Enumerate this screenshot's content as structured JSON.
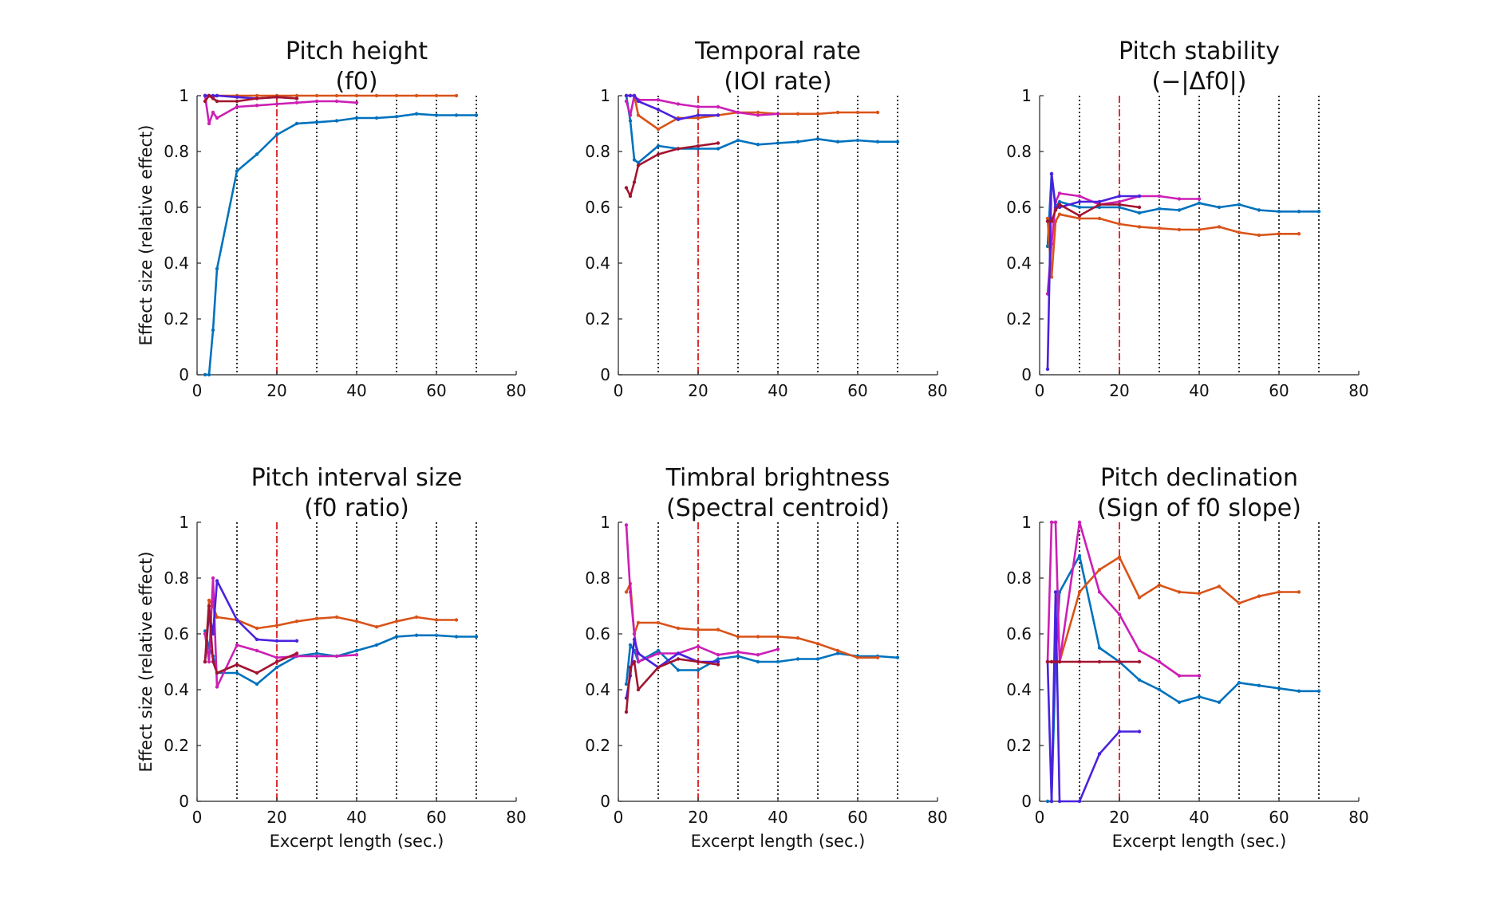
{
  "colors": {
    "blue": "#0072BD",
    "orange": "#D95319",
    "magenta": "#CC1FB5",
    "violet": "#4A22DD",
    "darkred": "#A2142F",
    "vline": "#000000",
    "redline": "#D40000"
  },
  "chart_data": [
    {
      "type": "line",
      "title": [
        "Pitch height",
        "(f0)"
      ],
      "xlabel": "",
      "ylabel": "Effect size (relative effect)",
      "xlim": [
        0,
        80
      ],
      "ylim": [
        0,
        1
      ],
      "xticks": [
        0,
        20,
        40,
        60,
        80
      ],
      "yticks": [
        0,
        0.2,
        0.4,
        0.6,
        0.8,
        1
      ],
      "vlines": [
        10,
        20,
        30,
        40,
        50,
        60,
        70
      ],
      "red_vline": 20,
      "series": [
        {
          "color": "blue",
          "x": [
            2,
            3,
            4,
            5,
            10,
            15,
            20,
            25,
            30,
            35,
            40,
            45,
            50,
            55,
            60,
            65,
            70
          ],
          "y": [
            0,
            0,
            0.16,
            0.38,
            0.73,
            0.79,
            0.86,
            0.9,
            0.905,
            0.91,
            0.92,
            0.92,
            0.925,
            0.935,
            0.93,
            0.93,
            0.93
          ]
        },
        {
          "color": "orange",
          "x": [
            2,
            3,
            4,
            5,
            10,
            15,
            20,
            25,
            30,
            35,
            40,
            45,
            50,
            55,
            60,
            65
          ],
          "y": [
            1,
            1,
            0.995,
            1,
            1,
            1,
            1,
            1,
            1,
            1,
            1,
            1,
            1,
            1,
            1,
            1
          ]
        },
        {
          "color": "magenta",
          "x": [
            2,
            3,
            4,
            5,
            10,
            15,
            20,
            25,
            30,
            35,
            40
          ],
          "y": [
            1,
            0.9,
            0.94,
            0.92,
            0.96,
            0.965,
            0.97,
            0.975,
            0.98,
            0.98,
            0.975
          ]
        },
        {
          "color": "violet",
          "x": [
            2,
            3,
            4,
            5,
            10,
            15,
            20,
            25
          ],
          "y": [
            1,
            1,
            1,
            1,
            0.995,
            0.99,
            0.995,
            0.99
          ]
        },
        {
          "color": "darkred",
          "x": [
            2,
            3,
            4,
            5,
            10,
            15,
            20,
            25
          ],
          "y": [
            0.98,
            1,
            0.99,
            0.98,
            0.98,
            0.99,
            0.995,
            0.99
          ]
        }
      ]
    },
    {
      "type": "line",
      "title": [
        "Temporal rate",
        "(IOI rate)"
      ],
      "xlabel": "",
      "ylabel": "",
      "xlim": [
        0,
        80
      ],
      "ylim": [
        0,
        1
      ],
      "xticks": [
        0,
        20,
        40,
        60,
        80
      ],
      "yticks": [
        0,
        0.2,
        0.4,
        0.6,
        0.8,
        1
      ],
      "vlines": [
        10,
        20,
        30,
        40,
        50,
        60,
        70
      ],
      "red_vline": 20,
      "series": [
        {
          "color": "blue",
          "x": [
            2,
            3,
            4,
            5,
            10,
            15,
            20,
            25,
            30,
            35,
            40,
            45,
            50,
            55,
            60,
            65,
            70
          ],
          "y": [
            1,
            0.91,
            0.77,
            0.76,
            0.82,
            0.81,
            0.81,
            0.81,
            0.84,
            0.825,
            0.83,
            0.835,
            0.845,
            0.835,
            0.84,
            0.835,
            0.835
          ]
        },
        {
          "color": "orange",
          "x": [
            2,
            3,
            4,
            5,
            10,
            15,
            20,
            25,
            30,
            35,
            40,
            45,
            50,
            55,
            60,
            65
          ],
          "y": [
            1,
            1,
            1,
            0.93,
            0.88,
            0.92,
            0.92,
            0.93,
            0.94,
            0.94,
            0.935,
            0.935,
            0.935,
            0.94,
            0.94,
            0.94
          ]
        },
        {
          "color": "magenta",
          "x": [
            2,
            3,
            4,
            5,
            10,
            15,
            20,
            25,
            30,
            35,
            40
          ],
          "y": [
            0.98,
            0.93,
            1,
            0.985,
            0.985,
            0.97,
            0.96,
            0.96,
            0.94,
            0.93,
            0.935
          ]
        },
        {
          "color": "violet",
          "x": [
            2,
            3,
            4,
            5,
            10,
            15,
            20,
            25
          ],
          "y": [
            1,
            1,
            1,
            0.98,
            0.95,
            0.915,
            0.93,
            0.93
          ]
        },
        {
          "color": "darkred",
          "x": [
            2,
            3,
            4,
            5,
            10,
            15,
            20,
            25
          ],
          "y": [
            0.67,
            0.64,
            0.69,
            0.75,
            0.79,
            0.81,
            0.82,
            0.83
          ]
        }
      ]
    },
    {
      "type": "line",
      "title": [
        "Pitch stability",
        "(−|Δf0|)"
      ],
      "xlabel": "",
      "ylabel": "",
      "xlim": [
        0,
        80
      ],
      "ylim": [
        0,
        1
      ],
      "xticks": [
        0,
        20,
        40,
        60,
        80
      ],
      "yticks": [
        0,
        0.2,
        0.4,
        0.6,
        0.8,
        1
      ],
      "vlines": [
        10,
        20,
        30,
        40,
        50,
        60,
        70
      ],
      "red_vline": 20,
      "series": [
        {
          "color": "blue",
          "x": [
            2,
            3,
            4,
            5,
            10,
            15,
            20,
            25,
            30,
            35,
            40,
            45,
            50,
            55,
            60,
            65,
            70
          ],
          "y": [
            0.46,
            0.72,
            0.6,
            0.62,
            0.6,
            0.6,
            0.6,
            0.58,
            0.595,
            0.59,
            0.615,
            0.6,
            0.61,
            0.59,
            0.585,
            0.585,
            0.585
          ]
        },
        {
          "color": "orange",
          "x": [
            2,
            3,
            4,
            5,
            10,
            15,
            20,
            25,
            30,
            35,
            40,
            45,
            50,
            55,
            60,
            65
          ],
          "y": [
            0.56,
            0.35,
            0.55,
            0.575,
            0.56,
            0.56,
            0.54,
            0.53,
            0.525,
            0.52,
            0.52,
            0.53,
            0.51,
            0.5,
            0.505,
            0.505
          ]
        },
        {
          "color": "magenta",
          "x": [
            2,
            3,
            4,
            5,
            10,
            15,
            20,
            25,
            30,
            35,
            40
          ],
          "y": [
            0.29,
            0.47,
            0.62,
            0.65,
            0.64,
            0.61,
            0.62,
            0.64,
            0.64,
            0.63,
            0.63
          ]
        },
        {
          "color": "violet",
          "x": [
            2,
            3,
            4,
            5,
            10,
            15,
            20,
            25
          ],
          "y": [
            0.02,
            0.72,
            0.6,
            0.6,
            0.62,
            0.62,
            0.64,
            0.64
          ]
        },
        {
          "color": "darkred",
          "x": [
            2,
            3,
            4,
            5,
            10,
            15,
            20,
            25
          ],
          "y": [
            0.55,
            0.55,
            0.59,
            0.61,
            0.57,
            0.61,
            0.61,
            0.6
          ]
        }
      ]
    },
    {
      "type": "line",
      "title": [
        "Pitch interval size",
        "(f0 ratio)"
      ],
      "xlabel": "Excerpt length (sec.)",
      "ylabel": "Effect size (relative effect)",
      "xlim": [
        0,
        80
      ],
      "ylim": [
        0,
        1
      ],
      "xticks": [
        0,
        20,
        40,
        60,
        80
      ],
      "yticks": [
        0,
        0.2,
        0.4,
        0.6,
        0.8,
        1
      ],
      "vlines": [
        10,
        20,
        30,
        40,
        50,
        60,
        70
      ],
      "red_vline": 20,
      "series": [
        {
          "color": "blue",
          "x": [
            2,
            3,
            4,
            5,
            10,
            15,
            20,
            25,
            30,
            35,
            40,
            45,
            50,
            55,
            60,
            65,
            70
          ],
          "y": [
            0.61,
            0.55,
            0.52,
            0.46,
            0.46,
            0.42,
            0.48,
            0.52,
            0.53,
            0.52,
            0.54,
            0.56,
            0.59,
            0.595,
            0.595,
            0.59,
            0.59
          ]
        },
        {
          "color": "orange",
          "x": [
            2,
            3,
            4,
            5,
            10,
            15,
            20,
            25,
            30,
            35,
            40,
            45,
            50,
            55,
            60,
            65
          ],
          "y": [
            0.5,
            0.72,
            0.7,
            0.66,
            0.65,
            0.62,
            0.63,
            0.645,
            0.655,
            0.66,
            0.645,
            0.625,
            0.645,
            0.66,
            0.65,
            0.65
          ]
        },
        {
          "color": "magenta",
          "x": [
            2,
            3,
            4,
            5,
            10,
            15,
            20,
            25,
            30,
            35,
            40
          ],
          "y": [
            0.6,
            0.5,
            0.8,
            0.41,
            0.56,
            0.54,
            0.515,
            0.52,
            0.52,
            0.52,
            0.525
          ]
        },
        {
          "color": "violet",
          "x": [
            2,
            3,
            4,
            5,
            10,
            15,
            20,
            25
          ],
          "y": [
            0.5,
            0.68,
            0.6,
            0.79,
            0.65,
            0.58,
            0.575,
            0.575
          ]
        },
        {
          "color": "darkred",
          "x": [
            2,
            3,
            4,
            5,
            10,
            15,
            20,
            25
          ],
          "y": [
            0.5,
            0.7,
            0.5,
            0.46,
            0.49,
            0.46,
            0.5,
            0.53
          ]
        }
      ]
    },
    {
      "type": "line",
      "title": [
        "Timbral brightness",
        "(Spectral centroid)"
      ],
      "xlabel": "Excerpt length (sec.)",
      "ylabel": "",
      "xlim": [
        0,
        80
      ],
      "ylim": [
        0,
        1
      ],
      "xticks": [
        0,
        20,
        40,
        60,
        80
      ],
      "yticks": [
        0,
        0.2,
        0.4,
        0.6,
        0.8,
        1
      ],
      "vlines": [
        10,
        20,
        30,
        40,
        50,
        60,
        70
      ],
      "red_vline": 20,
      "series": [
        {
          "color": "blue",
          "x": [
            2,
            3,
            4,
            5,
            10,
            15,
            20,
            25,
            30,
            35,
            40,
            45,
            50,
            55,
            60,
            65,
            70
          ],
          "y": [
            0.42,
            0.56,
            0.54,
            0.5,
            0.54,
            0.47,
            0.47,
            0.51,
            0.52,
            0.5,
            0.5,
            0.51,
            0.51,
            0.53,
            0.52,
            0.52,
            0.515
          ]
        },
        {
          "color": "orange",
          "x": [
            2,
            3,
            4,
            5,
            10,
            15,
            20,
            25,
            30,
            35,
            40,
            45,
            50,
            55,
            60,
            65
          ],
          "y": [
            0.75,
            0.78,
            0.6,
            0.64,
            0.64,
            0.62,
            0.615,
            0.615,
            0.59,
            0.59,
            0.59,
            0.585,
            0.565,
            0.54,
            0.515,
            0.515
          ]
        },
        {
          "color": "magenta",
          "x": [
            2,
            3,
            4,
            5,
            10,
            15,
            20,
            25,
            30,
            35,
            40
          ],
          "y": [
            0.99,
            0.75,
            0.6,
            0.5,
            0.53,
            0.53,
            0.555,
            0.525,
            0.535,
            0.525,
            0.545
          ]
        },
        {
          "color": "violet",
          "x": [
            2,
            3,
            4,
            5,
            10,
            15,
            20,
            25
          ],
          "y": [
            0.37,
            0.45,
            0.58,
            0.53,
            0.48,
            0.53,
            0.5,
            0.5
          ]
        },
        {
          "color": "darkred",
          "x": [
            2,
            3,
            4,
            5,
            10,
            15,
            20,
            25
          ],
          "y": [
            0.32,
            0.48,
            0.5,
            0.4,
            0.48,
            0.51,
            0.5,
            0.49
          ]
        }
      ]
    },
    {
      "type": "line",
      "title": [
        "Pitch declination",
        "(Sign of f0 slope)"
      ],
      "xlabel": "Excerpt length (sec.)",
      "ylabel": "",
      "xlim": [
        0,
        80
      ],
      "ylim": [
        0,
        1
      ],
      "xticks": [
        0,
        20,
        40,
        60,
        80
      ],
      "yticks": [
        0,
        0.2,
        0.4,
        0.6,
        0.8,
        1
      ],
      "vlines": [
        10,
        20,
        30,
        40,
        50,
        60,
        70
      ],
      "red_vline": 20,
      "series": [
        {
          "color": "blue",
          "x": [
            2,
            3,
            4,
            5,
            10,
            15,
            20,
            25,
            30,
            35,
            40,
            45,
            50,
            55,
            60,
            65,
            70
          ],
          "y": [
            0,
            0,
            0.5,
            0.75,
            0.88,
            0.55,
            0.5,
            0.435,
            0.4,
            0.355,
            0.375,
            0.355,
            0.425,
            0.415,
            0.405,
            0.395,
            0.395
          ]
        },
        {
          "color": "orange",
          "x": [
            2,
            3,
            4,
            5,
            10,
            15,
            20,
            25,
            30,
            35,
            40,
            45,
            50,
            55,
            60,
            65
          ],
          "y": [
            0.5,
            0.5,
            0.5,
            0.5,
            0.75,
            0.83,
            0.875,
            0.73,
            0.775,
            0.75,
            0.745,
            0.77,
            0.71,
            0.735,
            0.75,
            0.75
          ]
        },
        {
          "color": "magenta",
          "x": [
            2,
            3,
            4,
            5,
            10,
            15,
            20,
            25,
            30,
            35,
            40
          ],
          "y": [
            0.5,
            1,
            1,
            0.5,
            1,
            0.75,
            0.67,
            0.54,
            0.5,
            0.45,
            0.45
          ]
        },
        {
          "color": "violet",
          "x": [
            2,
            3,
            4,
            5,
            10,
            15,
            20,
            25
          ],
          "y": [
            0.5,
            0,
            0.75,
            0,
            0,
            0.17,
            0.25,
            0.25
          ]
        },
        {
          "color": "darkred",
          "x": [
            2,
            3,
            4,
            5,
            10,
            15,
            20,
            25
          ],
          "y": [
            0.5,
            0.5,
            0.5,
            0.5,
            0.5,
            0.5,
            0.5,
            0.5
          ]
        }
      ]
    }
  ]
}
